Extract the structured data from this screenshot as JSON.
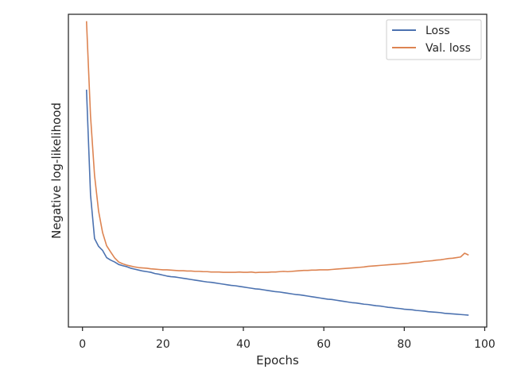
{
  "chart_data": {
    "type": "line",
    "xlabel": "Epochs",
    "ylabel": "Negative log-likelihood",
    "xlim": [
      -3.5,
      100.5
    ],
    "ylim": [
      0,
      100
    ],
    "y_tick_labels_shown": false,
    "x_ticks": [
      {
        "value": 0,
        "label": "0"
      },
      {
        "value": 20,
        "label": "20"
      },
      {
        "value": 40,
        "label": "40"
      },
      {
        "value": 60,
        "label": "60"
      },
      {
        "value": 80,
        "label": "80"
      },
      {
        "value": 100,
        "label": "100"
      }
    ],
    "grid": false,
    "legend": {
      "position": "top-right"
    },
    "series": [
      {
        "name": "Loss",
        "color": "#4c72b0",
        "x": [
          1,
          2,
          3,
          4,
          5,
          6,
          7,
          8,
          9,
          10,
          11,
          12,
          13,
          14,
          15,
          16,
          17,
          18,
          19,
          20,
          21,
          22,
          23,
          24,
          25,
          26,
          27,
          28,
          29,
          30,
          31,
          32,
          33,
          34,
          35,
          36,
          37,
          38,
          39,
          40,
          41,
          42,
          43,
          44,
          45,
          46,
          47,
          48,
          49,
          50,
          51,
          52,
          53,
          54,
          55,
          56,
          57,
          58,
          59,
          60,
          61,
          62,
          63,
          64,
          65,
          66,
          67,
          68,
          69,
          70,
          71,
          72,
          73,
          74,
          75,
          76,
          77,
          78,
          79,
          80,
          81,
          82,
          83,
          84,
          85,
          86,
          87,
          88,
          89,
          90,
          91,
          92,
          93,
          94,
          95,
          96
        ],
        "values": [
          75.9,
          42.3,
          28.3,
          25.8,
          24.5,
          22.2,
          21.4,
          20.8,
          20.0,
          19.6,
          19.3,
          18.8,
          18.5,
          18.2,
          17.9,
          17.7,
          17.5,
          17.1,
          16.9,
          16.6,
          16.3,
          16.1,
          16.0,
          15.8,
          15.6,
          15.4,
          15.2,
          15.0,
          14.8,
          14.6,
          14.4,
          14.3,
          14.1,
          13.9,
          13.7,
          13.5,
          13.3,
          13.2,
          13.0,
          12.8,
          12.6,
          12.4,
          12.2,
          12.1,
          11.9,
          11.7,
          11.5,
          11.3,
          11.2,
          11.0,
          10.8,
          10.6,
          10.4,
          10.3,
          10.1,
          9.9,
          9.7,
          9.5,
          9.3,
          9.1,
          8.9,
          8.8,
          8.6,
          8.4,
          8.2,
          8.0,
          7.8,
          7.7,
          7.5,
          7.3,
          7.2,
          7.0,
          6.8,
          6.7,
          6.5,
          6.3,
          6.2,
          6.0,
          5.9,
          5.7,
          5.6,
          5.5,
          5.3,
          5.2,
          5.1,
          4.9,
          4.8,
          4.7,
          4.6,
          4.4,
          4.3,
          4.2,
          4.1,
          4.0,
          3.9,
          3.8
        ]
      },
      {
        "name": "Val. loss",
        "color": "#dd8452",
        "x": [
          1,
          2,
          3,
          4,
          5,
          6,
          7,
          8,
          9,
          10,
          11,
          12,
          13,
          14,
          15,
          16,
          17,
          18,
          19,
          20,
          21,
          22,
          23,
          24,
          25,
          26,
          27,
          28,
          29,
          30,
          31,
          32,
          33,
          34,
          35,
          36,
          37,
          38,
          39,
          40,
          41,
          42,
          43,
          44,
          45,
          46,
          47,
          48,
          49,
          50,
          51,
          52,
          53,
          54,
          55,
          56,
          57,
          58,
          59,
          60,
          61,
          62,
          63,
          64,
          65,
          66,
          67,
          68,
          69,
          70,
          71,
          72,
          73,
          74,
          75,
          76,
          77,
          78,
          79,
          80,
          81,
          82,
          83,
          84,
          85,
          86,
          87,
          88,
          89,
          90,
          91,
          92,
          93,
          94,
          95,
          96
        ],
        "values": [
          97.8,
          67.5,
          48.5,
          37.1,
          30.2,
          26.0,
          24.0,
          22.1,
          20.8,
          20.2,
          19.8,
          19.5,
          19.2,
          19.0,
          18.9,
          18.8,
          18.6,
          18.5,
          18.4,
          18.3,
          18.3,
          18.2,
          18.1,
          18.0,
          18.0,
          17.9,
          17.9,
          17.8,
          17.8,
          17.7,
          17.7,
          17.6,
          17.6,
          17.6,
          17.5,
          17.5,
          17.5,
          17.5,
          17.6,
          17.5,
          17.5,
          17.6,
          17.4,
          17.5,
          17.5,
          17.5,
          17.6,
          17.6,
          17.7,
          17.8,
          17.7,
          17.8,
          17.9,
          18.0,
          18.1,
          18.1,
          18.2,
          18.2,
          18.3,
          18.3,
          18.3,
          18.4,
          18.5,
          18.6,
          18.7,
          18.8,
          18.9,
          19.0,
          19.1,
          19.2,
          19.4,
          19.5,
          19.6,
          19.7,
          19.8,
          19.9,
          20.0,
          20.1,
          20.2,
          20.3,
          20.4,
          20.6,
          20.7,
          20.8,
          21.0,
          21.1,
          21.2,
          21.4,
          21.5,
          21.7,
          21.9,
          22.0,
          22.2,
          22.4,
          23.6,
          23.0
        ]
      }
    ]
  }
}
